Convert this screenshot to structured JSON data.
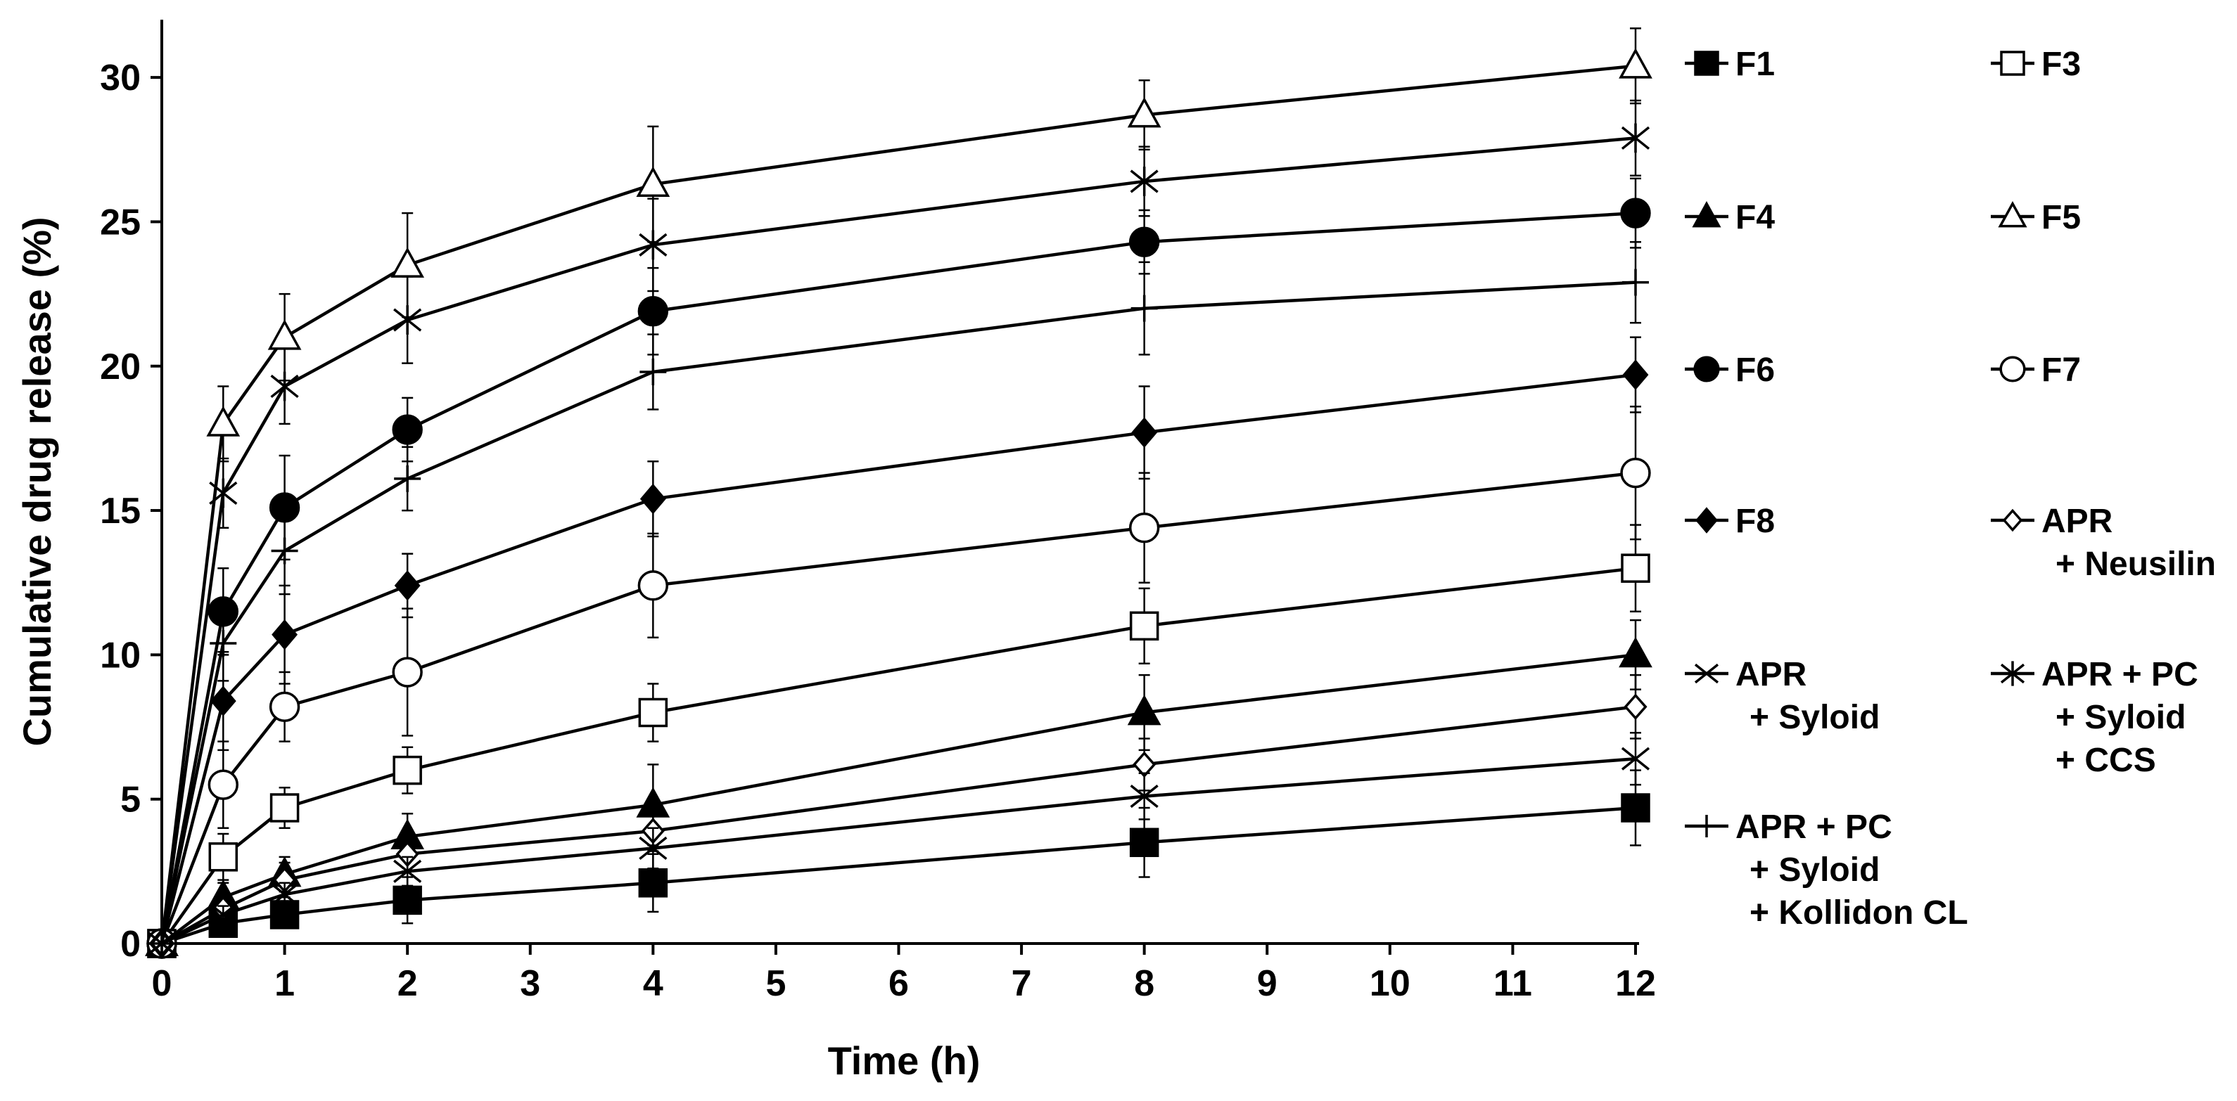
{
  "chart_data": {
    "type": "line",
    "title": "",
    "xlabel": "Time (h)",
    "ylabel": "Cumulative drug release (%)",
    "xlim": [
      0,
      12
    ],
    "ylim": [
      0,
      32
    ],
    "xticks": [
      0,
      1,
      2,
      3,
      4,
      5,
      6,
      7,
      8,
      9,
      10,
      11,
      12
    ],
    "yticks": [
      0,
      5,
      10,
      15,
      20,
      25,
      30
    ],
    "grid": false,
    "legend_position": "right",
    "x": [
      0,
      0.5,
      1,
      2,
      4,
      8,
      12
    ],
    "series": [
      {
        "name": "F1",
        "marker": "filled-square",
        "values": [
          0,
          0.7,
          1.0,
          1.5,
          2.1,
          3.5,
          4.7
        ],
        "errors": [
          0,
          0.3,
          0.4,
          0.8,
          1.0,
          1.2,
          1.3
        ]
      },
      {
        "name": "F3",
        "marker": "open-square",
        "values": [
          0,
          3.0,
          4.7,
          6.0,
          8.0,
          11.0,
          13.0
        ],
        "errors": [
          0,
          0.8,
          0.7,
          0.8,
          1.0,
          1.3,
          1.5
        ]
      },
      {
        "name": "F4",
        "marker": "filled-triangle",
        "values": [
          0,
          1.6,
          2.4,
          3.7,
          4.8,
          8.0,
          10.0
        ],
        "errors": [
          0,
          0.5,
          0.6,
          0.8,
          1.4,
          1.3,
          1.2
        ]
      },
      {
        "name": "F5",
        "marker": "open-triangle",
        "values": [
          0,
          18.0,
          21.0,
          23.5,
          26.3,
          28.7,
          30.4
        ],
        "errors": [
          0,
          1.3,
          1.5,
          1.8,
          2.0,
          1.2,
          1.3
        ]
      },
      {
        "name": "F6",
        "marker": "filled-circle",
        "values": [
          0,
          11.5,
          15.1,
          17.8,
          21.9,
          24.3,
          25.3
        ],
        "errors": [
          0,
          1.5,
          1.8,
          1.1,
          1.5,
          1.1,
          1.2
        ]
      },
      {
        "name": "F7",
        "marker": "open-circle",
        "values": [
          0,
          5.5,
          8.2,
          9.4,
          12.4,
          14.4,
          16.3
        ],
        "errors": [
          0,
          1.5,
          1.2,
          2.2,
          1.8,
          1.9,
          2.3
        ]
      },
      {
        "name": "F8",
        "marker": "filled-diamond",
        "values": [
          0,
          8.4,
          10.7,
          12.4,
          15.4,
          17.7,
          19.7
        ],
        "errors": [
          0,
          1.7,
          1.7,
          1.1,
          1.3,
          1.6,
          1.3
        ]
      },
      {
        "name": "APR + Neusilin",
        "marker": "open-diamond",
        "values": [
          0,
          1.2,
          2.2,
          3.1,
          3.9,
          6.2,
          8.2
        ],
        "errors": [
          0,
          0.4,
          0.6,
          0.6,
          0.7,
          0.9,
          1.1
        ]
      },
      {
        "name": "APR + Syloid",
        "marker": "x",
        "values": [
          0,
          1.0,
          1.7,
          2.5,
          3.3,
          5.1,
          6.4
        ],
        "errors": [
          0,
          0.3,
          0.4,
          0.5,
          0.7,
          0.8,
          0.9
        ]
      },
      {
        "name": "APR + PC + Syloid + CCS",
        "marker": "asterisk",
        "values": [
          0,
          15.6,
          19.3,
          21.6,
          24.2,
          26.4,
          27.9
        ],
        "errors": [
          0,
          1.2,
          1.3,
          1.5,
          1.6,
          1.2,
          1.3
        ]
      },
      {
        "name": "APR + PC + Syloid + Kollidon CL",
        "marker": "plus",
        "values": [
          0,
          10.4,
          13.6,
          16.1,
          19.8,
          22.0,
          22.9
        ],
        "errors": [
          0,
          1.3,
          1.5,
          1.1,
          1.3,
          1.6,
          1.4
        ]
      }
    ],
    "legend": [
      {
        "series": 0,
        "lines": [
          "F1"
        ]
      },
      {
        "series": 1,
        "lines": [
          "F3"
        ]
      },
      {
        "series": 2,
        "lines": [
          "F4"
        ]
      },
      {
        "series": 3,
        "lines": [
          "F5"
        ]
      },
      {
        "series": 4,
        "lines": [
          "F6"
        ]
      },
      {
        "series": 5,
        "lines": [
          "F7"
        ]
      },
      {
        "series": 6,
        "lines": [
          "F8"
        ]
      },
      {
        "series": 7,
        "lines": [
          "APR",
          "+ Neusilin"
        ]
      },
      {
        "series": 8,
        "lines": [
          "APR",
          "+ Syloid"
        ]
      },
      {
        "series": 9,
        "lines": [
          "APR + PC",
          "+ Syloid",
          "+ CCS"
        ]
      },
      {
        "series": 10,
        "lines": [
          "APR + PC",
          "+ Syloid",
          "+ Kollidon CL"
        ]
      }
    ]
  }
}
